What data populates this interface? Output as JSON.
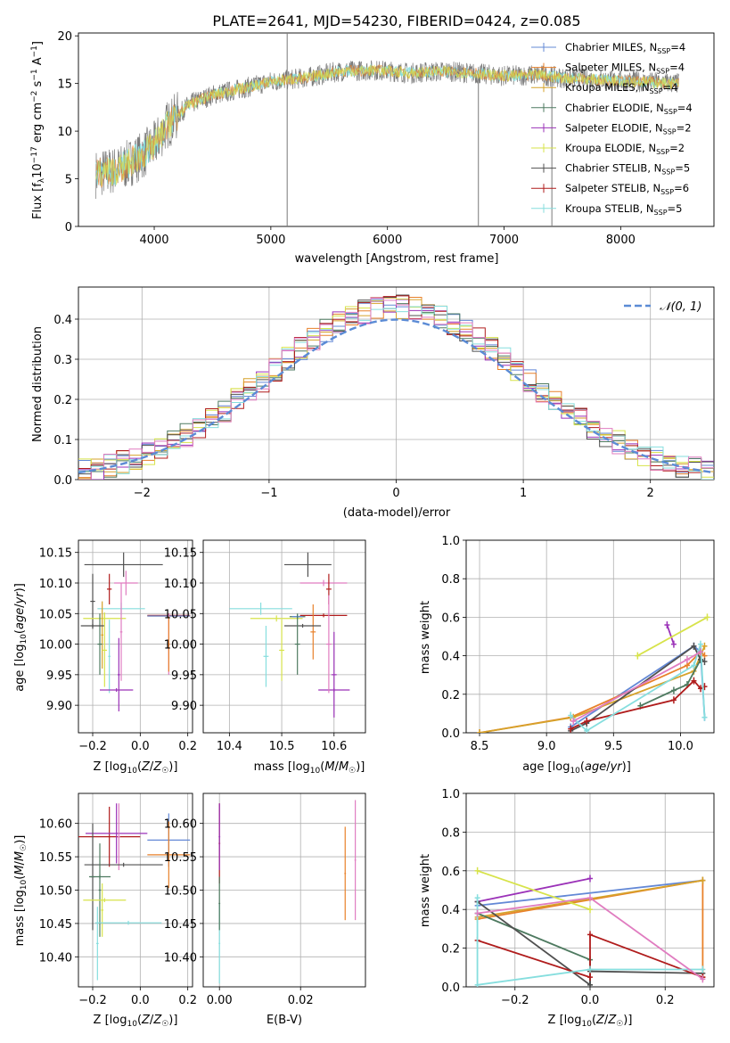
{
  "colors": {
    "Chabrier MILES": "#6388d6",
    "Salpeter MILES": "#e8812a",
    "Kroupa MILES": "#d6a22a",
    "Chabrier ELODIE": "#4e7a60",
    "Salpeter ELODIE": "#9b32b8",
    "Kroupa ELODIE": "#d7e34a",
    "Chabrier STELIB": "#505050",
    "Salpeter STELIB": "#b01c1c",
    "Kroupa STELIB": "#86dede",
    "pink": "#e07cc0",
    "grid": "#b0b0b0",
    "normal": "#5b8bd5"
  },
  "chart_data": [
    {
      "id": "spectrum",
      "type": "line",
      "title": "PLATE=2641, MJD=54230, FIBERID=0424, z=0.085",
      "xlabel": "wavelength [Angstrom, rest frame]",
      "ylabel": "Flux [f_λ10^-17 erg cm^-2 s^-1 A^-1]",
      "xlim": [
        3350,
        8800
      ],
      "ylim": [
        0,
        20.3
      ],
      "xticks": [
        "4000",
        "5000",
        "6000",
        "7000",
        "8000"
      ],
      "yticks": [
        "0",
        "5",
        "10",
        "15",
        "20"
      ],
      "legend_position": "right",
      "legend": [
        {
          "label": "Chabrier MILES, N_SSP=4",
          "color": "#6388d6"
        },
        {
          "label": "Salpeter MILES, N_SSP=4",
          "color": "#e8812a"
        },
        {
          "label": "Kroupa MILES, N_SSP=4",
          "color": "#d6a22a"
        },
        {
          "label": "Chabrier ELODIE, N_SSP=4",
          "color": "#4e7a60"
        },
        {
          "label": "Salpeter ELODIE, N_SSP=2",
          "color": "#9b32b8"
        },
        {
          "label": "Kroupa ELODIE, N_SSP=2",
          "color": "#d7e34a"
        },
        {
          "label": "Chabrier STELIB, N_SSP=5",
          "color": "#505050"
        },
        {
          "label": "Salpeter STELIB, N_SSP=6",
          "color": "#b01c1c"
        },
        {
          "label": "Kroupa STELIB, N_SSP=5",
          "color": "#86dede"
        }
      ],
      "continuum": [
        [
          3500,
          5.5
        ],
        [
          3700,
          6.0
        ],
        [
          3900,
          7.5
        ],
        [
          4000,
          8.5
        ],
        [
          4100,
          10.5
        ],
        [
          4300,
          12.8
        ],
        [
          4500,
          13.8
        ],
        [
          4800,
          14.6
        ],
        [
          5000,
          15.2
        ],
        [
          5300,
          15.6
        ],
        [
          5600,
          16.3
        ],
        [
          5900,
          16.4
        ],
        [
          6200,
          16.1
        ],
        [
          6500,
          16.3
        ],
        [
          6800,
          16.0
        ],
        [
          7000,
          15.8
        ],
        [
          7300,
          15.9
        ],
        [
          7500,
          15.6
        ],
        [
          7800,
          15.4
        ],
        [
          8000,
          15.3
        ],
        [
          8300,
          15.1
        ],
        [
          8500,
          15.0
        ]
      ],
      "vertical_spikes": [
        [
          5140,
          0,
          20.3
        ],
        [
          6780,
          0,
          16
        ],
        [
          7410,
          0,
          16
        ]
      ]
    },
    {
      "id": "residual-hist",
      "type": "line",
      "xlabel": "(data-model)/error",
      "ylabel": "Normed distribution",
      "xlim": [
        -2.5,
        2.5
      ],
      "ylim": [
        0,
        0.48
      ],
      "xticks": [
        "−2",
        "−1",
        "0",
        "1",
        "2"
      ],
      "yticks": [
        "0.0",
        "0.1",
        "0.2",
        "0.3",
        "0.4"
      ],
      "bins": [
        -2.5,
        2.5,
        50
      ],
      "reference_label": "𝒩(0, 1)",
      "reference_curve": "normal-pdf"
    },
    {
      "id": "age-vs-Z",
      "type": "scatter",
      "xlabel": "Z [log10(Z/Z☉)]",
      "ylabel": "age  [log10(age/yr)]",
      "xlim": [
        -0.26,
        0.22
      ],
      "ylim": [
        9.855,
        10.17
      ],
      "xticks": [
        "−0.2",
        "0.0",
        "0.2"
      ],
      "yticks": [
        "9.90",
        "9.95",
        "10.00",
        "10.05",
        "10.10",
        "10.15"
      ],
      "points": [
        {
          "c": "Chabrier STELIB",
          "x": -0.07,
          "y": 10.13,
          "xe": 0.165,
          "ye": 0.02
        },
        {
          "c": "pink",
          "x": -0.06,
          "y": 10.1,
          "xe": 0.05,
          "ye": 0.02
        },
        {
          "c": "Salpeter STELIB",
          "x": -0.13,
          "y": 10.09,
          "xe": 0.01,
          "ye": 0.025
        },
        {
          "c": "Chabrier STELIB",
          "x": -0.2,
          "y": 10.07,
          "xe": 0.01,
          "ye": 0.045
        },
        {
          "c": "Kroupa STELIB",
          "x": -0.08,
          "y": 10.058,
          "xe": 0.1,
          "ye": 0.01
        },
        {
          "c": "Kroupa ELODIE",
          "x": -0.15,
          "y": 10.042,
          "xe": 0.09,
          "ye": 0.01
        },
        {
          "c": "Salpeter STELIB",
          "x": 0.12,
          "y": 10.047,
          "xe": 0.09,
          "ye": 0.003
        },
        {
          "c": "Salpeter MILES",
          "x": 0.12,
          "y": 10.046,
          "xe": 0.09,
          "ye": 0.004
        },
        {
          "c": "Chabrier MILES",
          "x": 0.12,
          "y": 10.046,
          "xe": 0.09,
          "ye": 0.003
        },
        {
          "c": "Kroupa MILES",
          "x": -0.16,
          "y": 10.015,
          "xe": 0.005,
          "ye": 0.055
        },
        {
          "c": "Chabrier ELODIE",
          "x": -0.17,
          "y": 10.0,
          "xe": 0.01,
          "ye": 0.05
        },
        {
          "c": "Chabrier STELIB",
          "x": -0.2,
          "y": 10.03,
          "xe": 0.05,
          "ye": 0.003
        },
        {
          "c": "Kroupa ELODIE",
          "x": -0.15,
          "y": 9.99,
          "xe": 0.01,
          "ye": 0.06
        },
        {
          "c": "Kroupa STELIB",
          "x": -0.13,
          "y": 9.98,
          "xe": 0.005,
          "ye": 0.06
        },
        {
          "c": "Salpeter ELODIE",
          "x": -0.1,
          "y": 9.925,
          "xe": 0.07,
          "ye": 0.003
        },
        {
          "c": "Salpeter ELODIE",
          "x": -0.09,
          "y": 9.95,
          "xe": 0.005,
          "ye": 0.06
        },
        {
          "c": "pink",
          "x": -0.08,
          "y": 10.02,
          "xe": 0.005,
          "ye": 0.08
        },
        {
          "c": "pink",
          "x": 0.12,
          "y": 10.0,
          "xe": 0.005,
          "ye": 0.05
        },
        {
          "c": "Salpeter MILES",
          "x": 0.12,
          "y": 10.0,
          "xe": 0.005,
          "ye": 0.045
        }
      ]
    },
    {
      "id": "age-vs-mass",
      "type": "scatter",
      "xlabel": "mass [log10(M/M☉)]",
      "ylabel": "",
      "xlim": [
        10.35,
        10.66
      ],
      "ylim": [
        9.855,
        10.17
      ],
      "xticks": [
        "10.4",
        "10.5",
        "10.6"
      ],
      "yticks": [
        "9.90",
        "9.95",
        "10.00",
        "10.05",
        "10.10",
        "10.15"
      ],
      "points": [
        {
          "c": "Chabrier STELIB",
          "x": 10.55,
          "y": 10.13,
          "xe": 0.045,
          "ye": 0.02
        },
        {
          "c": "pink",
          "x": 10.58,
          "y": 10.1,
          "xe": 0.045,
          "ye": 0.005
        },
        {
          "c": "Salpeter STELIB",
          "x": 10.59,
          "y": 10.09,
          "xe": 0.005,
          "ye": 0.025
        },
        {
          "c": "Kroupa STELIB",
          "x": 10.46,
          "y": 10.058,
          "xe": 0.06,
          "ye": 0.01
        },
        {
          "c": "Kroupa ELODIE",
          "x": 10.49,
          "y": 10.042,
          "xe": 0.05,
          "ye": 0.005
        },
        {
          "c": "Salpeter STELIB",
          "x": 10.58,
          "y": 10.047,
          "xe": 0.045,
          "ye": 0.003
        },
        {
          "c": "Chabrier ELODIE",
          "x": 10.53,
          "y": 10.045,
          "xe": 0.015,
          "ye": 0.003
        },
        {
          "c": "Chabrier MILES",
          "x": 10.53,
          "y": 10.045,
          "xe": 0.01,
          "ye": 0.003
        },
        {
          "c": "Salpeter MILES",
          "x": 10.56,
          "y": 10.02,
          "xe": 0.005,
          "ye": 0.045
        },
        {
          "c": "Chabrier STELIB",
          "x": 10.54,
          "y": 10.03,
          "xe": 0.035,
          "ye": 0.003
        },
        {
          "c": "Chabrier ELODIE",
          "x": 10.53,
          "y": 10.0,
          "xe": 0.005,
          "ye": 0.05
        },
        {
          "c": "Kroupa STELIB",
          "x": 10.47,
          "y": 9.98,
          "xe": 0.005,
          "ye": 0.05
        },
        {
          "c": "Kroupa ELODIE",
          "x": 10.5,
          "y": 9.99,
          "xe": 0.005,
          "ye": 0.05
        },
        {
          "c": "Salpeter ELODIE",
          "x": 10.6,
          "y": 9.925,
          "xe": 0.03,
          "ye": 0.003
        },
        {
          "c": "Salpeter ELODIE",
          "x": 10.6,
          "y": 9.95,
          "xe": 0.005,
          "ye": 0.07
        },
        {
          "c": "pink",
          "x": 10.59,
          "y": 10.0,
          "xe": 0.005,
          "ye": 0.08
        }
      ]
    },
    {
      "id": "massweight-vs-age",
      "type": "line",
      "xlabel": "age  [log10(age/yr)]",
      "ylabel": "mass weight",
      "xlim": [
        8.4,
        10.25
      ],
      "ylim": [
        0,
        1.0
      ],
      "xticks": [
        "8.5",
        "9.0",
        "9.5",
        "10.0"
      ],
      "yticks": [
        "0.0",
        "0.2",
        "0.4",
        "0.6",
        "0.8",
        "1.0"
      ],
      "series": [
        {
          "c": "Chabrier MILES",
          "x": [
            9.18,
            10.1,
            10.15,
            10.18
          ],
          "y": [
            0.03,
            0.45,
            0.42,
            0.08
          ]
        },
        {
          "c": "Salpeter MILES",
          "x": [
            8.5,
            9.18,
            10.05,
            10.15,
            10.18
          ],
          "y": [
            0.0,
            0.08,
            0.35,
            0.42,
            0.4
          ]
        },
        {
          "c": "Kroupa MILES",
          "x": [
            8.5,
            9.2,
            10.1,
            10.18
          ],
          "y": [
            0.0,
            0.08,
            0.32,
            0.45
          ]
        },
        {
          "c": "Chabrier ELODIE",
          "x": [
            9.7,
            9.95,
            10.05,
            10.15
          ],
          "y": [
            0.14,
            0.22,
            0.25,
            0.38
          ]
        },
        {
          "c": "Salpeter ELODIE",
          "x": [
            9.9,
            9.95
          ],
          "y": [
            0.56,
            0.46
          ]
        },
        {
          "c": "Kroupa ELODIE",
          "x": [
            9.68,
            10.2
          ],
          "y": [
            0.4,
            0.6
          ]
        },
        {
          "c": "Chabrier STELIB",
          "x": [
            9.18,
            9.3,
            10.1,
            10.15,
            10.18
          ],
          "y": [
            0.01,
            0.05,
            0.45,
            0.38,
            0.37
          ]
        },
        {
          "c": "Salpeter STELIB",
          "x": [
            9.18,
            9.3,
            9.95,
            10.1,
            10.15,
            10.18
          ],
          "y": [
            0.02,
            0.06,
            0.17,
            0.27,
            0.23,
            0.24
          ]
        },
        {
          "c": "Kroupa STELIB",
          "x": [
            9.18,
            9.3,
            10.1,
            10.15,
            10.18
          ],
          "y": [
            0.09,
            0.01,
            0.35,
            0.46,
            0.08
          ]
        },
        {
          "c": "pink",
          "x": [
            9.2,
            10.05,
            10.15
          ],
          "y": [
            0.06,
            0.38,
            0.42
          ]
        }
      ]
    },
    {
      "id": "mass-vs-Z",
      "type": "scatter",
      "xlabel": "Z [log10(Z/Z☉)]",
      "ylabel": "mass [log10(M/M☉)]",
      "xlim": [
        -0.26,
        0.22
      ],
      "ylim": [
        10.355,
        10.645
      ],
      "xticks": [
        "−0.2",
        "0.0",
        "0.2"
      ],
      "yticks": [
        "10.40",
        "10.45",
        "10.50",
        "10.55",
        "10.60"
      ],
      "points": [
        {
          "c": "Salpeter STELIB",
          "x": -0.13,
          "y": 10.58,
          "xe": 0.13,
          "ye": 0.045
        },
        {
          "c": "Salpeter ELODIE",
          "x": -0.1,
          "y": 10.585,
          "xe": 0.13,
          "ye": 0.045
        },
        {
          "c": "pink",
          "x": -0.09,
          "y": 10.58,
          "xe": 0.005,
          "ye": 0.05
        },
        {
          "c": "Chabrier MILES",
          "x": 0.12,
          "y": 10.575,
          "xe": 0.09,
          "ye": 0.04
        },
        {
          "c": "Salpeter MILES",
          "x": 0.12,
          "y": 10.553,
          "xe": 0.09,
          "ye": 0.05
        },
        {
          "c": "Chabrier STELIB",
          "x": -0.07,
          "y": 10.538,
          "xe": 0.165,
          "ye": 0.003
        },
        {
          "c": "Chabrier STELIB",
          "x": -0.2,
          "y": 10.52,
          "xe": 0.01,
          "ye": 0.08
        },
        {
          "c": "Chabrier ELODIE",
          "x": -0.17,
          "y": 10.52,
          "xe": 0.045,
          "ye": 0.003
        },
        {
          "c": "Chabrier ELODIE",
          "x": -0.17,
          "y": 10.5,
          "xe": 0.005,
          "ye": 0.07
        },
        {
          "c": "Kroupa ELODIE",
          "x": -0.15,
          "y": 10.485,
          "xe": 0.09,
          "ye": 0.003
        },
        {
          "c": "Kroupa ELODIE",
          "x": -0.16,
          "y": 10.47,
          "xe": 0.005,
          "ye": 0.04
        },
        {
          "c": "Kroupa STELIB",
          "x": -0.05,
          "y": 10.451,
          "xe": 0.14,
          "ye": 0.003
        },
        {
          "c": "Kroupa STELIB",
          "x": -0.18,
          "y": 10.42,
          "xe": 0.005,
          "ye": 0.055
        }
      ]
    },
    {
      "id": "mass-vs-EBV",
      "type": "scatter",
      "xlabel": "E(B-V)",
      "ylabel": "",
      "xlim": [
        -0.004,
        0.036
      ],
      "ylim": [
        10.355,
        10.645
      ],
      "xticks": [
        "0.00",
        "0.02"
      ],
      "yticks": [
        "10.40",
        "10.45",
        "10.50",
        "10.55",
        "10.60"
      ],
      "points": [
        {
          "c": "Salpeter STELIB",
          "x": 0.0,
          "y": 10.57,
          "xe": 0.0002,
          "ye": 0.06
        },
        {
          "c": "Salpeter ELODIE",
          "x": 0.0,
          "y": 10.58,
          "xe": 0.0002,
          "ye": 0.05
        },
        {
          "c": "Kroupa STELIB",
          "x": 0.0,
          "y": 10.42,
          "xe": 0.0002,
          "ye": 0.06
        },
        {
          "c": "Chabrier ELODIE",
          "x": 0.0,
          "y": 10.48,
          "xe": 0.0002,
          "ye": 0.04
        },
        {
          "c": "Salpeter MILES",
          "x": 0.031,
          "y": 10.525,
          "xe": 0.0002,
          "ye": 0.07
        },
        {
          "c": "pink",
          "x": 0.0335,
          "y": 10.545,
          "xe": 0.0002,
          "ye": 0.09
        }
      ]
    },
    {
      "id": "massweight-vs-Z",
      "type": "line",
      "xlabel": "Z [log10(Z/Z☉)]",
      "ylabel": "mass weight",
      "xlim": [
        -0.33,
        0.33
      ],
      "ylim": [
        0,
        1.0
      ],
      "xticks": [
        "−0.2",
        "0.0",
        "0.2"
      ],
      "yticks": [
        "0.0",
        "0.2",
        "0.4",
        "0.6",
        "0.8",
        "1.0"
      ],
      "series": [
        {
          "c": "Chabrier MILES",
          "x": [
            -0.3,
            0.3
          ],
          "y": [
            0.42,
            0.55
          ]
        },
        {
          "c": "Salpeter MILES",
          "x": [
            -0.3,
            0.3,
            0.3
          ],
          "y": [
            0.35,
            0.55,
            0.05
          ]
        },
        {
          "c": "Kroupa MILES",
          "x": [
            -0.3,
            0.3
          ],
          "y": [
            0.36,
            0.55
          ]
        },
        {
          "c": "Chabrier ELODIE",
          "x": [
            -0.3,
            0.0,
            0.0
          ],
          "y": [
            0.38,
            0.14,
            0.01
          ]
        },
        {
          "c": "Salpeter ELODIE",
          "x": [
            -0.3,
            0.0
          ],
          "y": [
            0.44,
            0.56
          ]
        },
        {
          "c": "Kroupa ELODIE",
          "x": [
            -0.3,
            0.0
          ],
          "y": [
            0.6,
            0.4
          ]
        },
        {
          "c": "Chabrier STELIB",
          "x": [
            -0.3,
            0.0,
            0.0,
            0.3
          ],
          "y": [
            0.44,
            0.01,
            0.08,
            0.07
          ]
        },
        {
          "c": "Salpeter STELIB",
          "x": [
            -0.3,
            0.0,
            0.0,
            0.3
          ],
          "y": [
            0.24,
            0.05,
            0.27,
            0.05
          ]
        },
        {
          "c": "Kroupa STELIB",
          "x": [
            -0.3,
            -0.3,
            0.0,
            0.3
          ],
          "y": [
            0.46,
            0.01,
            0.09,
            0.09
          ]
        },
        {
          "c": "pink",
          "x": [
            -0.3,
            0.0,
            0.3
          ],
          "y": [
            0.38,
            0.46,
            0.04
          ]
        }
      ]
    }
  ]
}
